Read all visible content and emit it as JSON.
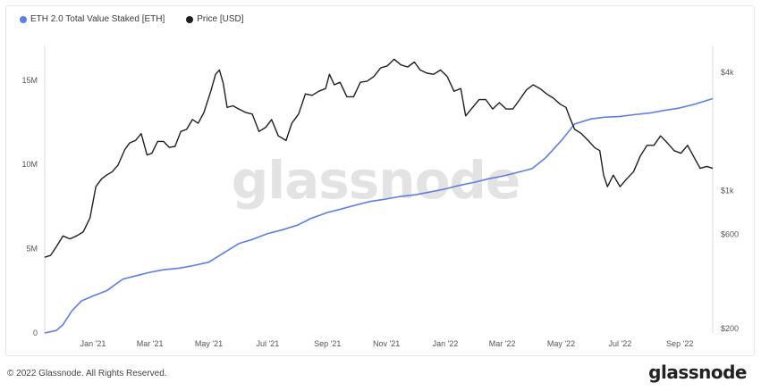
{
  "legend": [
    {
      "label": "ETH 2.0 Total Value Staked [ETH]",
      "color": "#5b7fe6"
    },
    {
      "label": "Price [USD]",
      "color": "#1f1f1f"
    }
  ],
  "watermark": "glassnode",
  "footer": {
    "copyright": "© 2022 Glassnode. All Rights Reserved.",
    "brand": "glassnode"
  },
  "chart_data": {
    "type": "line",
    "title": "",
    "x_tick_labels": [
      "Jan '21",
      "Mar '21",
      "May '21",
      "Jul '21",
      "Sep '21",
      "Nov '21",
      "Jan '22",
      "Mar '22",
      "May '22",
      "Jul '22",
      "Sep '22"
    ],
    "x_tick_dates": [
      "2021-01-01",
      "2021-03-01",
      "2021-05-01",
      "2021-07-01",
      "2021-09-01",
      "2021-11-01",
      "2022-01-01",
      "2022-03-01",
      "2022-05-01",
      "2022-07-01",
      "2022-09-01"
    ],
    "x_range": [
      "2020-11-12",
      "2022-10-05"
    ],
    "left_axis": {
      "ticks": [
        0,
        5000000,
        10000000,
        15000000
      ],
      "tick_labels": [
        "0",
        "5M",
        "10M",
        "15M"
      ],
      "range": [
        0,
        17000000
      ]
    },
    "right_axis": {
      "scale": "log",
      "ticks": [
        200,
        600,
        1000,
        4000
      ],
      "tick_labels": [
        "$200",
        "$600",
        "$1k",
        "$4k"
      ],
      "range": [
        190,
        5400
      ]
    },
    "grid": false,
    "legend_position": "top-left",
    "series": [
      {
        "name": "ETH 2.0 Total Value Staked [ETH]",
        "axis": "left",
        "color": "#5b7fe6",
        "x": [
          "2020-11-12",
          "2020-11-24",
          "2020-12-01",
          "2020-12-10",
          "2020-12-20",
          "2021-01-01",
          "2021-01-15",
          "2021-02-01",
          "2021-02-15",
          "2021-03-01",
          "2021-03-15",
          "2021-04-01",
          "2021-04-15",
          "2021-05-01",
          "2021-05-15",
          "2021-06-01",
          "2021-06-15",
          "2021-07-01",
          "2021-07-15",
          "2021-08-01",
          "2021-08-15",
          "2021-09-01",
          "2021-09-15",
          "2021-10-01",
          "2021-10-15",
          "2021-11-01",
          "2021-11-15",
          "2021-12-01",
          "2021-12-15",
          "2022-01-01",
          "2022-01-15",
          "2022-02-01",
          "2022-02-15",
          "2022-03-01",
          "2022-03-15",
          "2022-04-01",
          "2022-04-15",
          "2022-05-01",
          "2022-05-15",
          "2022-06-01",
          "2022-06-15",
          "2022-07-01",
          "2022-07-15",
          "2022-08-01",
          "2022-08-15",
          "2022-09-01",
          "2022-09-15",
          "2022-10-05"
        ],
        "values": [
          0,
          150000,
          500000,
          1300000,
          1900000,
          2200000,
          2500000,
          3200000,
          3400000,
          3600000,
          3750000,
          3850000,
          4000000,
          4200000,
          4700000,
          5300000,
          5550000,
          5900000,
          6100000,
          6400000,
          6800000,
          7150000,
          7350000,
          7600000,
          7800000,
          7950000,
          8100000,
          8200000,
          8350000,
          8550000,
          8750000,
          8950000,
          9150000,
          9300000,
          9500000,
          9750000,
          10400000,
          11400000,
          12400000,
          12700000,
          12800000,
          12850000,
          12950000,
          13050000,
          13200000,
          13350000,
          13550000,
          13900000
        ]
      },
      {
        "name": "Price [USD]",
        "axis": "right",
        "color": "#1f1f1f",
        "x": [
          "2020-11-12",
          "2020-11-18",
          "2020-11-24",
          "2020-12-01",
          "2020-12-08",
          "2020-12-15",
          "2020-12-22",
          "2020-12-29",
          "2021-01-04",
          "2021-01-10",
          "2021-01-15",
          "2021-01-21",
          "2021-01-27",
          "2021-02-03",
          "2021-02-08",
          "2021-02-14",
          "2021-02-20",
          "2021-02-26",
          "2021-03-03",
          "2021-03-09",
          "2021-03-15",
          "2021-03-21",
          "2021-03-27",
          "2021-04-02",
          "2021-04-08",
          "2021-04-14",
          "2021-04-20",
          "2021-04-26",
          "2021-05-03",
          "2021-05-08",
          "2021-05-12",
          "2021-05-16",
          "2021-05-20",
          "2021-05-26",
          "2021-06-01",
          "2021-06-08",
          "2021-06-15",
          "2021-06-22",
          "2021-06-29",
          "2021-07-05",
          "2021-07-12",
          "2021-07-20",
          "2021-07-26",
          "2021-08-02",
          "2021-08-09",
          "2021-08-16",
          "2021-08-23",
          "2021-08-30",
          "2021-09-03",
          "2021-09-08",
          "2021-09-14",
          "2021-09-21",
          "2021-09-28",
          "2021-10-05",
          "2021-10-12",
          "2021-10-19",
          "2021-10-26",
          "2021-11-02",
          "2021-11-09",
          "2021-11-16",
          "2021-11-23",
          "2021-11-30",
          "2021-12-06",
          "2021-12-13",
          "2021-12-20",
          "2021-12-27",
          "2022-01-03",
          "2022-01-10",
          "2022-01-17",
          "2022-01-22",
          "2022-01-28",
          "2022-02-05",
          "2022-02-12",
          "2022-02-19",
          "2022-02-26",
          "2022-03-05",
          "2022-03-12",
          "2022-03-19",
          "2022-03-26",
          "2022-04-02",
          "2022-04-09",
          "2022-04-16",
          "2022-04-23",
          "2022-04-30",
          "2022-05-06",
          "2022-05-10",
          "2022-05-15",
          "2022-05-22",
          "2022-05-29",
          "2022-06-05",
          "2022-06-10",
          "2022-06-14",
          "2022-06-18",
          "2022-06-24",
          "2022-07-01",
          "2022-07-08",
          "2022-07-15",
          "2022-07-22",
          "2022-07-29",
          "2022-08-05",
          "2022-08-12",
          "2022-08-19",
          "2022-08-26",
          "2022-09-02",
          "2022-09-09",
          "2022-09-15",
          "2022-09-22",
          "2022-09-29",
          "2022-10-05"
        ],
        "values": [
          460,
          470,
          520,
          590,
          570,
          590,
          620,
          730,
          1050,
          1150,
          1200,
          1250,
          1350,
          1620,
          1750,
          1800,
          1950,
          1520,
          1550,
          1780,
          1780,
          1660,
          1680,
          2000,
          2050,
          2300,
          2200,
          2500,
          3200,
          3900,
          4100,
          3500,
          2650,
          2700,
          2600,
          2500,
          2450,
          2000,
          2100,
          2300,
          1900,
          1800,
          2200,
          2450,
          3100,
          3050,
          3200,
          3300,
          3900,
          3450,
          3550,
          3000,
          3000,
          3550,
          3600,
          3800,
          4200,
          4300,
          4650,
          4350,
          4250,
          4500,
          4100,
          3950,
          3900,
          4100,
          3800,
          3200,
          3300,
          2400,
          2600,
          2900,
          2900,
          2600,
          2800,
          2600,
          2600,
          2900,
          3250,
          3450,
          3300,
          3100,
          2950,
          2750,
          2650,
          2350,
          2050,
          1950,
          1800,
          1650,
          1600,
          1200,
          1050,
          1200,
          1050,
          1150,
          1250,
          1500,
          1700,
          1700,
          1900,
          1750,
          1600,
          1550,
          1700,
          1500,
          1300,
          1330,
          1300
        ]
      }
    ]
  }
}
